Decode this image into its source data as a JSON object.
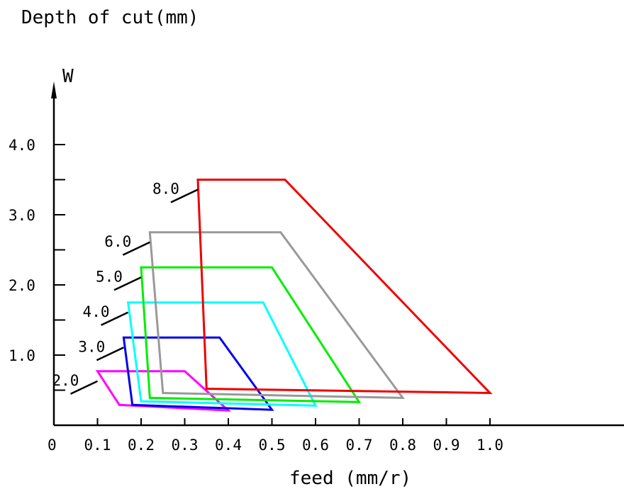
{
  "chart_data": {
    "type": "area",
    "title": "Depth of cut(mm)",
    "xlabel": "feed (mm/r)",
    "ylabel": "W",
    "x_origin_label": "0",
    "xlim": [
      0,
      1.25
    ],
    "ylim": [
      0,
      4.9
    ],
    "x_ticks": [
      "0.1",
      "0.2",
      "0.3",
      "0.4",
      "0.5",
      "0.6",
      "0.7",
      "0.8",
      "0.9",
      "1.0"
    ],
    "x_tick_values": [
      0.1,
      0.2,
      0.3,
      0.4,
      0.5,
      0.6,
      0.7,
      0.8,
      0.9,
      1.0
    ],
    "y_ticks": [
      "1.0",
      "2.0",
      "3.0",
      "4.0"
    ],
    "y_tick_values": [
      1.0,
      2.0,
      3.0,
      4.0
    ],
    "y_minor_ticks": [
      0.5,
      1.5,
      2.5,
      3.5
    ],
    "grid": false,
    "legend": "none",
    "series": [
      {
        "name": "2.0",
        "color": "#ff00ff",
        "polygon": [
          [
            0.1,
            0.77
          ],
          [
            0.3,
            0.77
          ],
          [
            0.4,
            0.21
          ],
          [
            0.15,
            0.29
          ]
        ],
        "label_anchor": [
          0.1,
          0.77
        ]
      },
      {
        "name": "3.0",
        "color": "#0000ee",
        "polygon": [
          [
            0.16,
            1.25
          ],
          [
            0.38,
            1.25
          ],
          [
            0.5,
            0.22
          ],
          [
            0.18,
            0.29
          ]
        ],
        "label_anchor": [
          0.16,
          1.25
        ]
      },
      {
        "name": "4.0",
        "color": "#00ffff",
        "polygon": [
          [
            0.17,
            1.75
          ],
          [
            0.48,
            1.75
          ],
          [
            0.6,
            0.28
          ],
          [
            0.2,
            0.34
          ]
        ],
        "label_anchor": [
          0.17,
          1.75
        ]
      },
      {
        "name": "5.0",
        "color": "#00ee00",
        "polygon": [
          [
            0.2,
            2.25
          ],
          [
            0.5,
            2.25
          ],
          [
            0.7,
            0.33
          ],
          [
            0.22,
            0.39
          ]
        ],
        "label_anchor": [
          0.2,
          2.25
        ]
      },
      {
        "name": "6.0",
        "color": "#999999",
        "polygon": [
          [
            0.22,
            2.75
          ],
          [
            0.52,
            2.75
          ],
          [
            0.8,
            0.39
          ],
          [
            0.25,
            0.46
          ]
        ],
        "label_anchor": [
          0.22,
          2.75
        ]
      },
      {
        "name": "8.0",
        "color": "#ee0000",
        "polygon": [
          [
            0.33,
            3.5
          ],
          [
            0.53,
            3.5
          ],
          [
            1.0,
            0.46
          ],
          [
            0.35,
            0.52
          ]
        ],
        "label_anchor": [
          0.33,
          3.5
        ]
      }
    ]
  }
}
